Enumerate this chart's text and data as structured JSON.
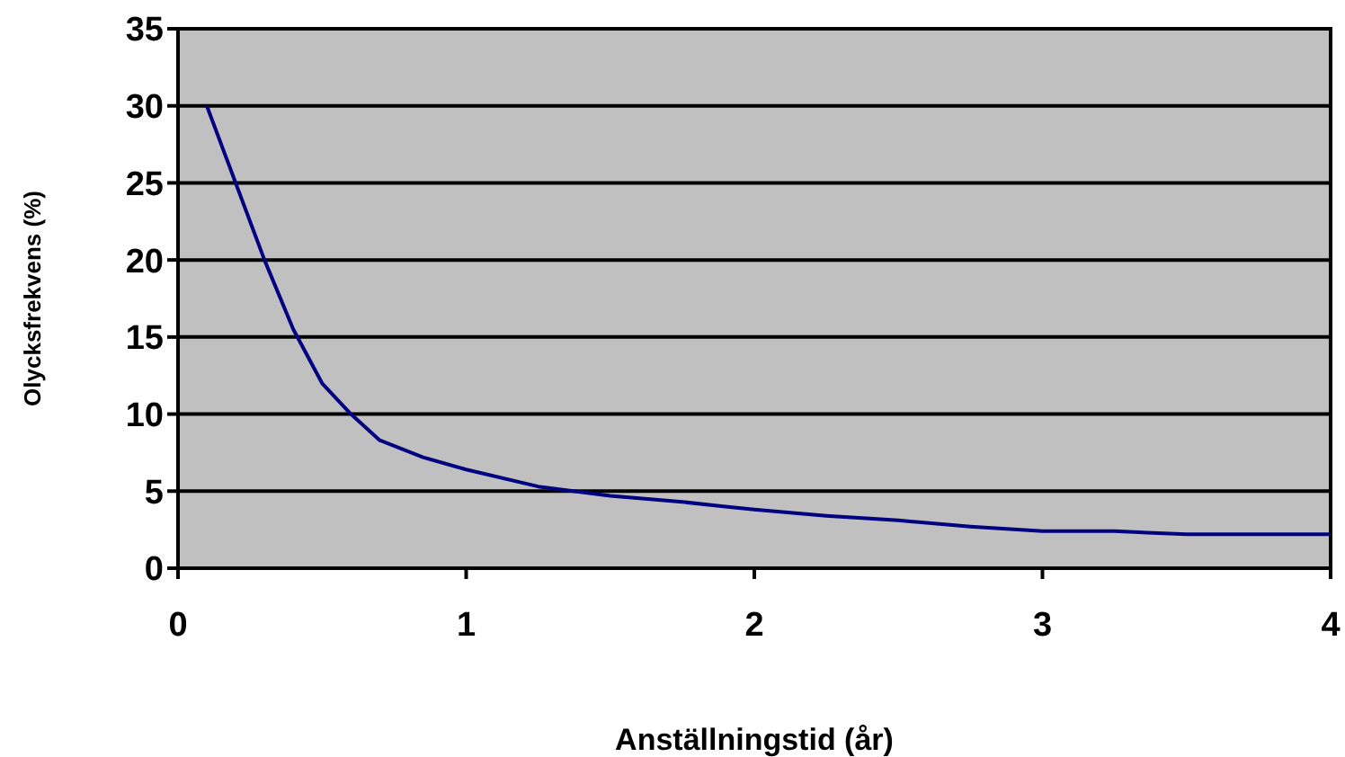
{
  "chart_data": {
    "type": "line",
    "xlabel": "Anställningstid (år)",
    "ylabel": "Olycksfrekvens (%)",
    "x": [
      0.1,
      0.2,
      0.3,
      0.4,
      0.5,
      0.6,
      0.7,
      0.85,
      1,
      1.25,
      1.5,
      1.75,
      1.9,
      2,
      2.25,
      2.5,
      2.75,
      3,
      3.25,
      3.5,
      4
    ],
    "series": [
      {
        "color": "#000080",
        "values": [
          30,
          25,
          20,
          15.5,
          12,
          10,
          8.3,
          7.2,
          6.4,
          5.3,
          4.7,
          4.3,
          4.0,
          3.8,
          3.4,
          3.1,
          2.7,
          2.4,
          2.4,
          2.2,
          2.2
        ]
      }
    ],
    "xlim": [
      0,
      4
    ],
    "xticks": [
      0,
      1,
      2,
      3,
      4
    ],
    "ylim": [
      0,
      35
    ],
    "yticks": [
      0,
      5,
      10,
      15,
      20,
      25,
      30,
      35
    ],
    "grid": "y",
    "legend": false,
    "marker": "none",
    "line_style": "solid"
  }
}
